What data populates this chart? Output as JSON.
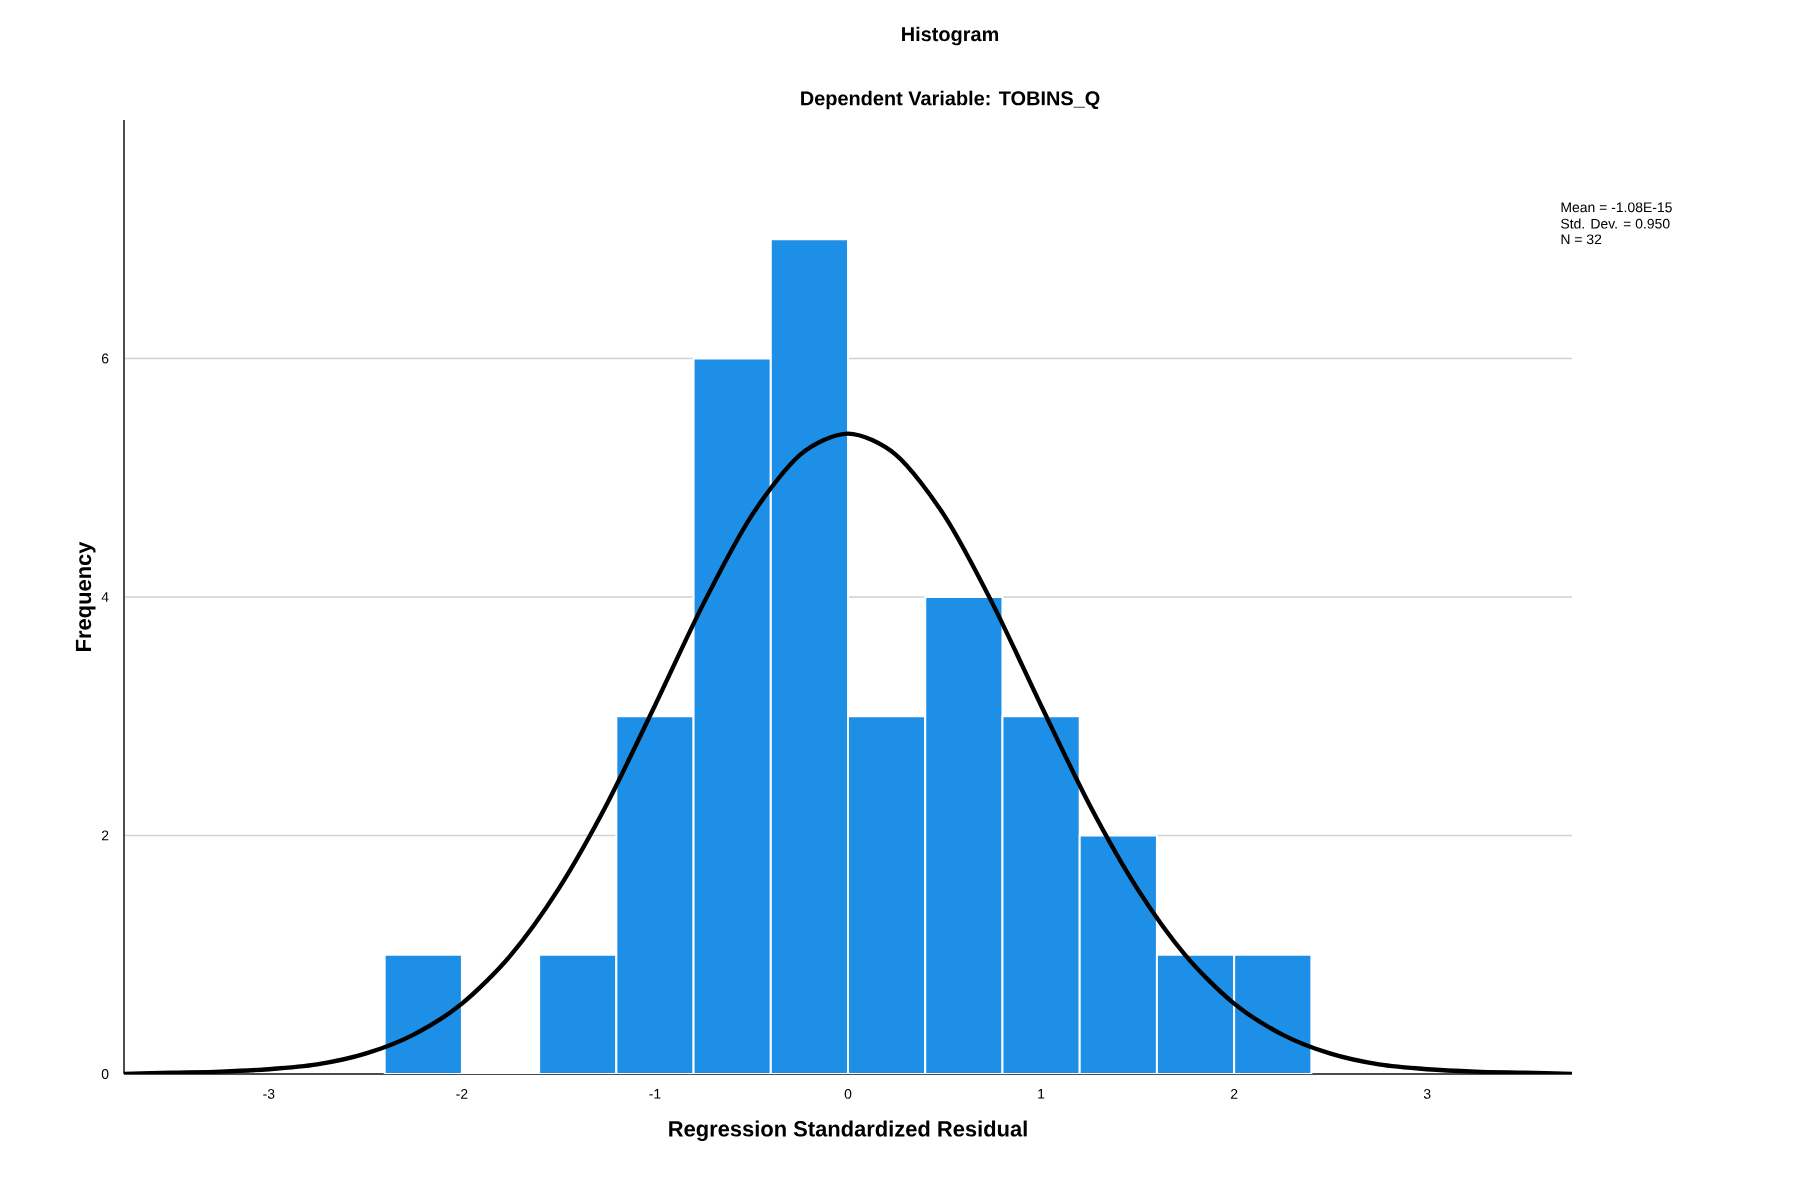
{
  "chart_data": {
    "type": "histogram",
    "title": "Histogram",
    "subtitle": "Dependent Variable: TOBINS_Q",
    "xlabel": "Regression Standardized Residual",
    "ylabel": "Frequency",
    "annotations": [
      "Mean = -1.08E-15",
      "Std. Dev. = 0.950",
      "N = 32"
    ],
    "bins": [
      -2.4,
      -2.0,
      -1.6,
      -1.2,
      -0.8,
      -0.4,
      0,
      0.4,
      0.8,
      1.2,
      1.6,
      2.0,
      2.4
    ],
    "values": [
      1,
      0,
      1,
      3,
      6,
      7,
      3,
      4,
      3,
      2,
      1,
      1
    ],
    "color": "#1e8fe6",
    "series": [
      {
        "type": "line",
        "color": "#000000",
        "x": [
          -3.75,
          -3.5,
          -3.25,
          -3.0,
          -2.75,
          -2.5,
          -2.25,
          -2.0,
          -1.75,
          -1.5,
          -1.25,
          -1.0,
          -0.75,
          -0.5,
          -0.25,
          0,
          0.25,
          0.5,
          0.75,
          1.0,
          1.25,
          1.5,
          1.75,
          2.0,
          2.25,
          2.5,
          2.75,
          3.0,
          3.25,
          3.5,
          3.75
        ],
        "values": [
          0.0,
          0.01,
          0.02,
          0.04,
          0.08,
          0.17,
          0.33,
          0.59,
          0.99,
          1.55,
          2.26,
          3.09,
          3.94,
          4.68,
          5.19,
          5.37,
          5.19,
          4.68,
          3.94,
          3.09,
          2.26,
          1.55,
          0.99,
          0.59,
          0.33,
          0.17,
          0.08,
          0.04,
          0.02,
          0.01,
          0.0
        ]
      }
    ],
    "xlim": [
      -3.75,
      3.75
    ],
    "ylim": [
      0,
      8
    ],
    "xticks": [
      -3,
      -2,
      -1,
      0,
      1,
      2,
      3
    ],
    "yticks": [
      0,
      2,
      4,
      6
    ],
    "grid": "y",
    "marker": "none",
    "line_style": "solid"
  }
}
